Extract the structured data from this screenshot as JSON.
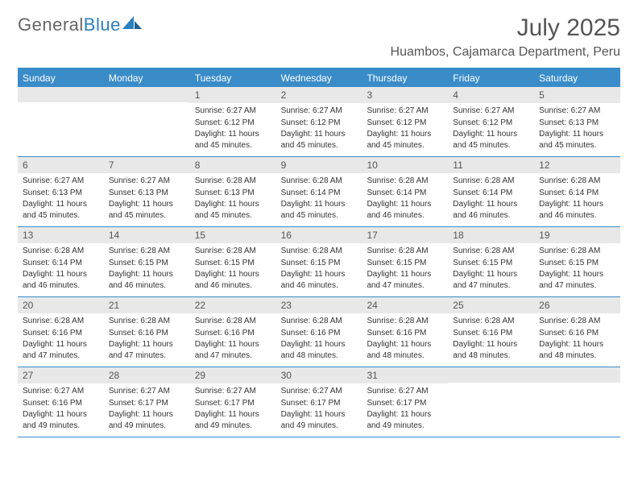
{
  "brand": {
    "part1": "General",
    "part2": "Blue"
  },
  "title": "July 2025",
  "location": "Huambos, Cajamarca Department, Peru",
  "colors": {
    "accent": "#3a8cc9",
    "headerText": "#ffffff",
    "dayNumBg": "#e8e8e8",
    "bodyText": "#333333",
    "titleText": "#555555"
  },
  "weekdays": [
    "Sunday",
    "Monday",
    "Tuesday",
    "Wednesday",
    "Thursday",
    "Friday",
    "Saturday"
  ],
  "labels": {
    "sunrise": "Sunrise:",
    "sunset": "Sunset:",
    "daylight": "Daylight:"
  },
  "weeks": [
    [
      null,
      null,
      {
        "n": "1",
        "sr": "6:27 AM",
        "ss": "6:12 PM",
        "dl": "11 hours and 45 minutes."
      },
      {
        "n": "2",
        "sr": "6:27 AM",
        "ss": "6:12 PM",
        "dl": "11 hours and 45 minutes."
      },
      {
        "n": "3",
        "sr": "6:27 AM",
        "ss": "6:12 PM",
        "dl": "11 hours and 45 minutes."
      },
      {
        "n": "4",
        "sr": "6:27 AM",
        "ss": "6:12 PM",
        "dl": "11 hours and 45 minutes."
      },
      {
        "n": "5",
        "sr": "6:27 AM",
        "ss": "6:13 PM",
        "dl": "11 hours and 45 minutes."
      }
    ],
    [
      {
        "n": "6",
        "sr": "6:27 AM",
        "ss": "6:13 PM",
        "dl": "11 hours and 45 minutes."
      },
      {
        "n": "7",
        "sr": "6:27 AM",
        "ss": "6:13 PM",
        "dl": "11 hours and 45 minutes."
      },
      {
        "n": "8",
        "sr": "6:28 AM",
        "ss": "6:13 PM",
        "dl": "11 hours and 45 minutes."
      },
      {
        "n": "9",
        "sr": "6:28 AM",
        "ss": "6:14 PM",
        "dl": "11 hours and 45 minutes."
      },
      {
        "n": "10",
        "sr": "6:28 AM",
        "ss": "6:14 PM",
        "dl": "11 hours and 46 minutes."
      },
      {
        "n": "11",
        "sr": "6:28 AM",
        "ss": "6:14 PM",
        "dl": "11 hours and 46 minutes."
      },
      {
        "n": "12",
        "sr": "6:28 AM",
        "ss": "6:14 PM",
        "dl": "11 hours and 46 minutes."
      }
    ],
    [
      {
        "n": "13",
        "sr": "6:28 AM",
        "ss": "6:14 PM",
        "dl": "11 hours and 46 minutes."
      },
      {
        "n": "14",
        "sr": "6:28 AM",
        "ss": "6:15 PM",
        "dl": "11 hours and 46 minutes."
      },
      {
        "n": "15",
        "sr": "6:28 AM",
        "ss": "6:15 PM",
        "dl": "11 hours and 46 minutes."
      },
      {
        "n": "16",
        "sr": "6:28 AM",
        "ss": "6:15 PM",
        "dl": "11 hours and 46 minutes."
      },
      {
        "n": "17",
        "sr": "6:28 AM",
        "ss": "6:15 PM",
        "dl": "11 hours and 47 minutes."
      },
      {
        "n": "18",
        "sr": "6:28 AM",
        "ss": "6:15 PM",
        "dl": "11 hours and 47 minutes."
      },
      {
        "n": "19",
        "sr": "6:28 AM",
        "ss": "6:15 PM",
        "dl": "11 hours and 47 minutes."
      }
    ],
    [
      {
        "n": "20",
        "sr": "6:28 AM",
        "ss": "6:16 PM",
        "dl": "11 hours and 47 minutes."
      },
      {
        "n": "21",
        "sr": "6:28 AM",
        "ss": "6:16 PM",
        "dl": "11 hours and 47 minutes."
      },
      {
        "n": "22",
        "sr": "6:28 AM",
        "ss": "6:16 PM",
        "dl": "11 hours and 47 minutes."
      },
      {
        "n": "23",
        "sr": "6:28 AM",
        "ss": "6:16 PM",
        "dl": "11 hours and 48 minutes."
      },
      {
        "n": "24",
        "sr": "6:28 AM",
        "ss": "6:16 PM",
        "dl": "11 hours and 48 minutes."
      },
      {
        "n": "25",
        "sr": "6:28 AM",
        "ss": "6:16 PM",
        "dl": "11 hours and 48 minutes."
      },
      {
        "n": "26",
        "sr": "6:28 AM",
        "ss": "6:16 PM",
        "dl": "11 hours and 48 minutes."
      }
    ],
    [
      {
        "n": "27",
        "sr": "6:27 AM",
        "ss": "6:16 PM",
        "dl": "11 hours and 49 minutes."
      },
      {
        "n": "28",
        "sr": "6:27 AM",
        "ss": "6:17 PM",
        "dl": "11 hours and 49 minutes."
      },
      {
        "n": "29",
        "sr": "6:27 AM",
        "ss": "6:17 PM",
        "dl": "11 hours and 49 minutes."
      },
      {
        "n": "30",
        "sr": "6:27 AM",
        "ss": "6:17 PM",
        "dl": "11 hours and 49 minutes."
      },
      {
        "n": "31",
        "sr": "6:27 AM",
        "ss": "6:17 PM",
        "dl": "11 hours and 49 minutes."
      },
      null,
      null
    ]
  ]
}
